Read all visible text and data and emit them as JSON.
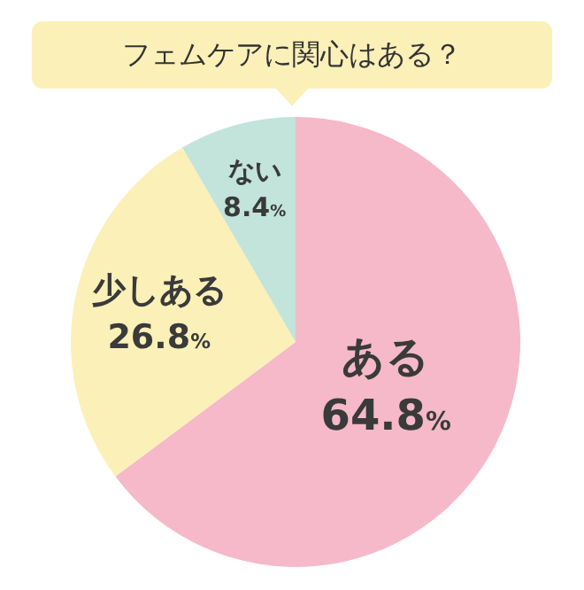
{
  "chart_data": {
    "type": "pie",
    "title": "フェムケアに関心はある？",
    "categories": [
      "ある",
      "少しある",
      "ない"
    ],
    "values": [
      64.8,
      26.8,
      8.4
    ],
    "colors": [
      "#f5b9c9",
      "#fbf0b8",
      "#c2e4da"
    ],
    "value_labels": [
      "64.8%",
      "26.8%",
      "8.4%"
    ],
    "legend": false
  }
}
